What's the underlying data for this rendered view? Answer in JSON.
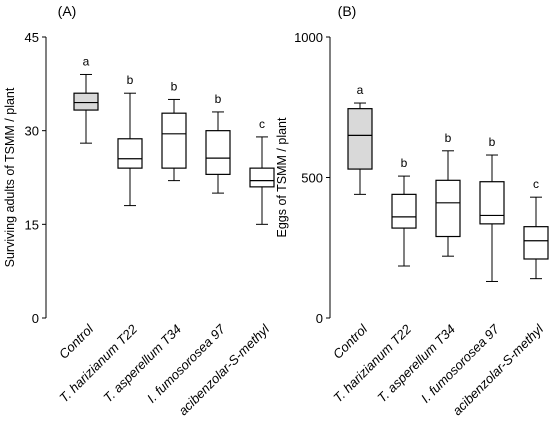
{
  "chart_data": [
    {
      "type": "box",
      "panel_label": "(A)",
      "ylabel": "Surviving adults of TSMM / plant",
      "ylim": [
        0,
        45
      ],
      "yticks": [
        "0",
        "15",
        "30",
        "45"
      ],
      "categories": [
        "Control",
        "T. harizianum T22",
        "T. asperellum T34",
        "I. fumosorosea 97",
        "acibenzolar-S-methyl"
      ],
      "letters": [
        "a",
        "b",
        "b",
        "b",
        "c"
      ],
      "fills": [
        "#d9d9d9",
        "#ffffff",
        "#ffffff",
        "#ffffff",
        "#ffffff"
      ],
      "boxes": [
        {
          "min": 28,
          "q1": 33.3,
          "median": 34.5,
          "q3": 36,
          "max": 39
        },
        {
          "min": 18,
          "q1": 24,
          "median": 25.5,
          "q3": 28.7,
          "max": 36
        },
        {
          "min": 22,
          "q1": 24,
          "median": 29.5,
          "q3": 32.8,
          "max": 35
        },
        {
          "min": 20,
          "q1": 23,
          "median": 25.6,
          "q3": 30,
          "max": 33
        },
        {
          "min": 15,
          "q1": 21,
          "median": 22,
          "q3": 24,
          "max": 29
        }
      ]
    },
    {
      "type": "box",
      "panel_label": "(B)",
      "ylabel": "Eggs of TSMM / plant",
      "ylim": [
        0,
        1000
      ],
      "yticks": [
        "0",
        "500",
        "1000"
      ],
      "categories": [
        "Control",
        "T. harizianum T22",
        "T. asperellum T34",
        "I. fumosorosea 97",
        "acibenzolar-S-methyl"
      ],
      "letters": [
        "a",
        "b",
        "b",
        "b",
        "c"
      ],
      "fills": [
        "#d9d9d9",
        "#ffffff",
        "#ffffff",
        "#ffffff",
        "#ffffff"
      ],
      "boxes": [
        {
          "min": 440,
          "q1": 530,
          "median": 650,
          "q3": 745,
          "max": 765
        },
        {
          "min": 185,
          "q1": 320,
          "median": 360,
          "q3": 440,
          "max": 505
        },
        {
          "min": 220,
          "q1": 290,
          "median": 410,
          "q3": 490,
          "max": 595
        },
        {
          "min": 130,
          "q1": 335,
          "median": 365,
          "q3": 485,
          "max": 580
        },
        {
          "min": 140,
          "q1": 210,
          "median": 275,
          "q3": 325,
          "max": 430
        }
      ]
    }
  ]
}
